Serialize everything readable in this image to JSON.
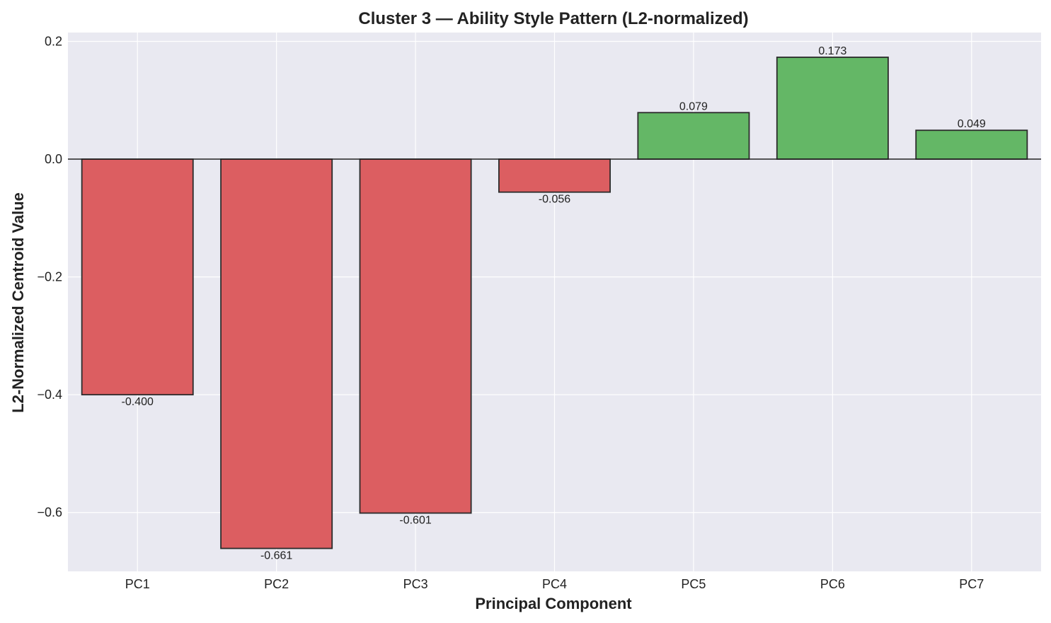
{
  "chart_data": {
    "type": "bar",
    "title": "Cluster 3 — Ability Style Pattern (L2-normalized)",
    "xlabel": "Principal Component",
    "ylabel": "L2-Normalized Centroid Value",
    "categories": [
      "PC1",
      "PC2",
      "PC3",
      "PC4",
      "PC5",
      "PC6",
      "PC7"
    ],
    "values": [
      -0.4,
      -0.661,
      -0.601,
      -0.056,
      0.079,
      0.173,
      0.049
    ],
    "value_labels": [
      "-0.400",
      "-0.661",
      "-0.601",
      "-0.056",
      "0.079",
      "0.173",
      "0.049"
    ],
    "ylim": [
      -0.7,
      0.215
    ],
    "yticks": [
      0.2,
      0.0,
      -0.2,
      -0.4,
      -0.6
    ],
    "ytick_labels": [
      "0.2",
      "0.0",
      "−0.2",
      "−0.4",
      "−0.6"
    ],
    "grid": true,
    "legend": "none",
    "colors": {
      "negative": "#dc5e61",
      "positive": "#64b766",
      "edge": "#2b2b2b",
      "plot_background": "#e9e9f1",
      "grid": "#ffffff",
      "zero_line": "#222222"
    }
  }
}
